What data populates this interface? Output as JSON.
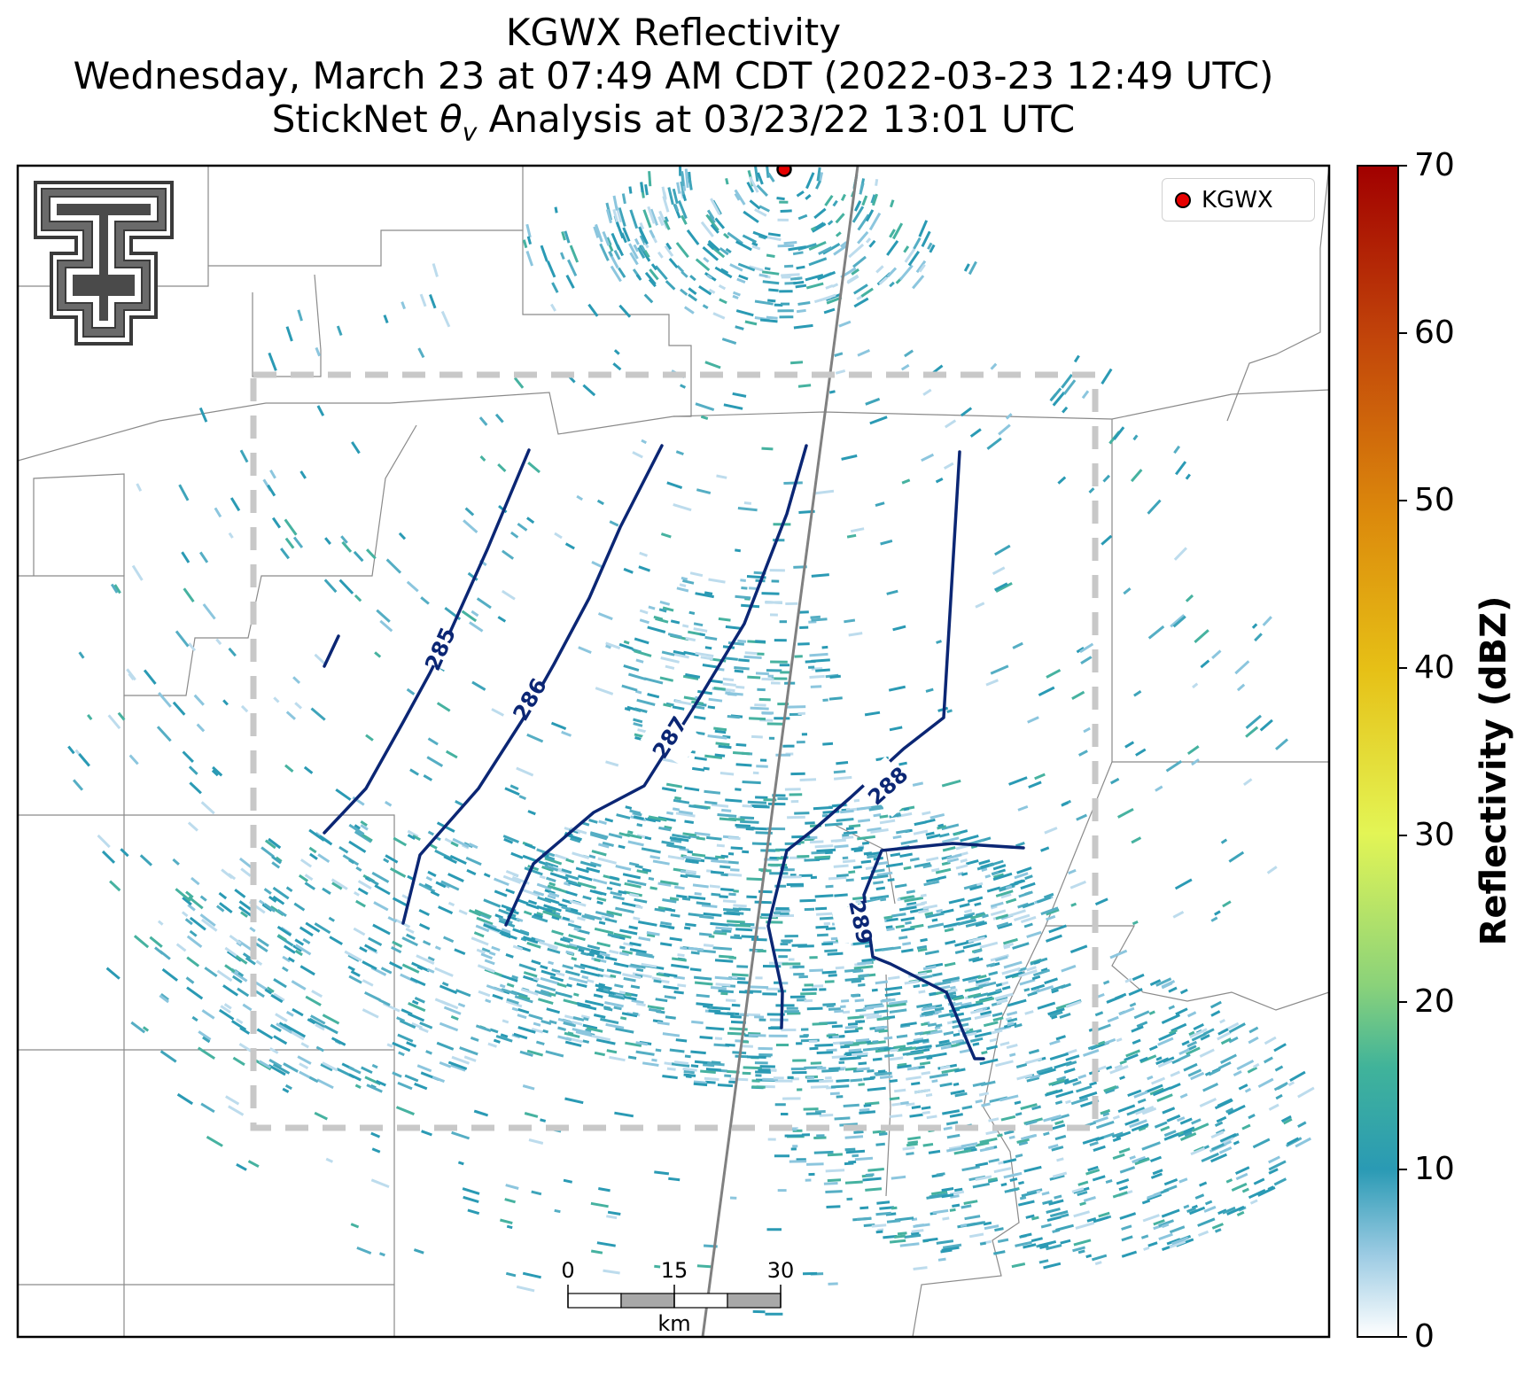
{
  "title": {
    "line1": "KGWX Reflectivity",
    "line2": "Wednesday, March 23 at 07:49 AM CDT (2022-03-23 12:49 UTC)",
    "line3_prefix": "StickNet ",
    "line3_symbol": "θ",
    "line3_subscript": "v",
    "line3_suffix": " Analysis at 03/23/22 13:01 UTC"
  },
  "legend": {
    "label": "KGWX",
    "marker_color": "#e60000"
  },
  "colorbar": {
    "label": "Reflectivity (dBZ)",
    "min": 0,
    "max": 70,
    "ticks": [
      "0",
      "10",
      "20",
      "30",
      "40",
      "50",
      "60",
      "70"
    ],
    "colors": [
      "#ffffff",
      "#9ccbe3",
      "#2a9ab4",
      "#40b39a",
      "#8ad27a",
      "#e3f555",
      "#e6c016",
      "#dc8a0c",
      "#c2460a",
      "#a10000"
    ]
  },
  "scalebar": {
    "ticks": [
      "0",
      "15",
      "30"
    ],
    "unit": "km"
  },
  "contours": [
    {
      "label": "285",
      "color": "#0b2674"
    },
    {
      "label": "286",
      "color": "#0b2674"
    },
    {
      "label": "287",
      "color": "#0b2674"
    },
    {
      "label": "288",
      "color": "#0b2674"
    },
    {
      "label": "289",
      "color": "#0b2674"
    }
  ],
  "logo": {
    "name": "texas-tech-double-t-logo"
  },
  "colors": {
    "frame": "#000000",
    "county_lines": "#8a8a8a",
    "analysis_box": "#cccccc",
    "radar_marker": "#e60000"
  }
}
